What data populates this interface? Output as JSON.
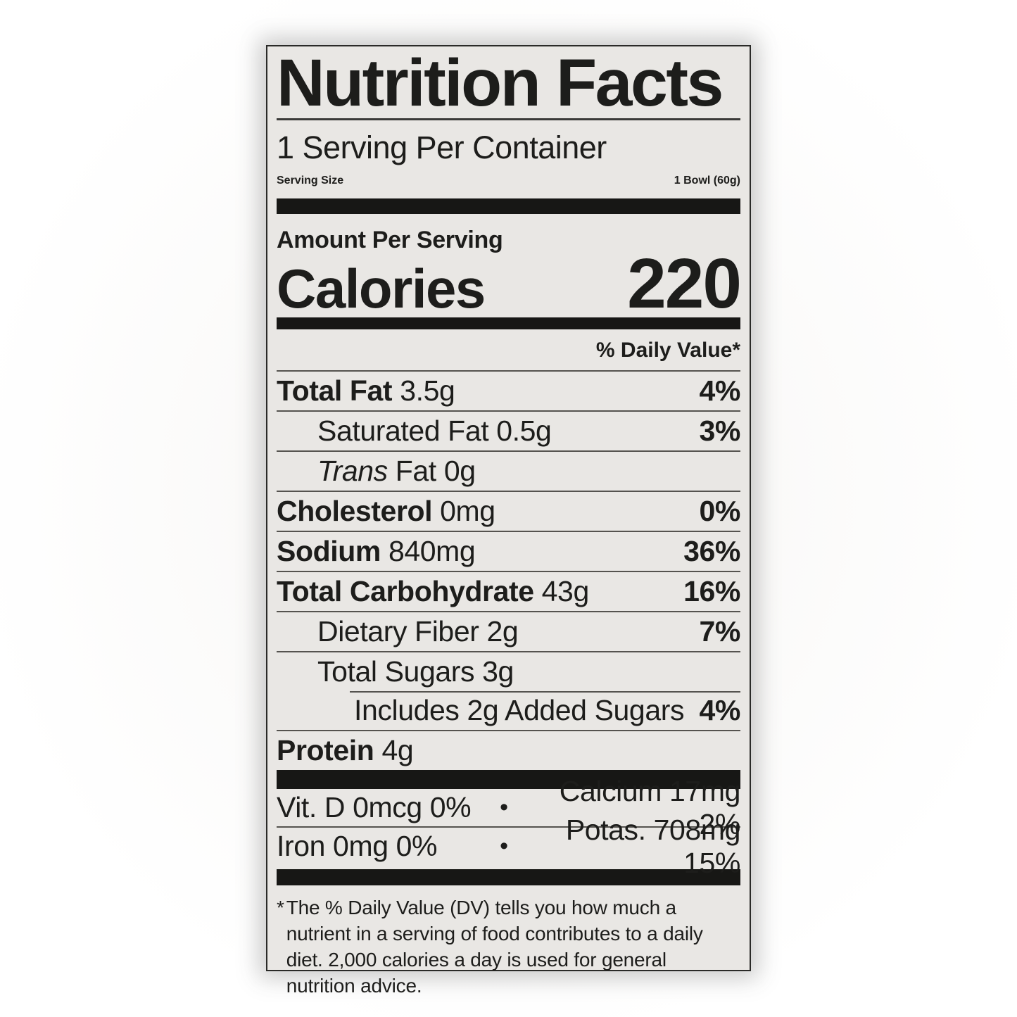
{
  "label": {
    "title": "Nutrition Facts",
    "servings_per_container": "1 Serving Per Container",
    "serving_size": {
      "label": "Serving Size",
      "value": "1 Bowl (60g)"
    },
    "amount_per_serving": "Amount Per Serving",
    "calories": {
      "label": "Calories",
      "value": "220"
    },
    "daily_value_header": "% Daily Value*",
    "nutrients": [
      {
        "name": "Total Fat",
        "amount": "3.5g",
        "dv": "4%"
      },
      {
        "name": "Saturated Fat",
        "amount": "0.5g",
        "dv": "3%"
      },
      {
        "name_italic": "Trans",
        "name_rest": "Fat",
        "amount": "0g",
        "dv": ""
      },
      {
        "name": "Cholesterol",
        "amount": "0mg",
        "dv": "0%"
      },
      {
        "name": "Sodium",
        "amount": "840mg",
        "dv": "36%"
      },
      {
        "name": "Total Carbohydrate",
        "amount": "43g",
        "dv": "16%"
      },
      {
        "name": "Dietary Fiber",
        "amount": "2g",
        "dv": "7%"
      },
      {
        "name": "Total Sugars",
        "amount": "3g",
        "dv": ""
      },
      {
        "name": "Includes 2g Added Sugars",
        "amount": "",
        "dv": "4%"
      },
      {
        "name": "Protein",
        "amount": "4g",
        "dv": ""
      }
    ],
    "micronutrients": [
      {
        "left": "Vit. D 0mcg 0%",
        "separator": "•",
        "right": "Calcium 17mg 2%"
      },
      {
        "left": "Iron 0mg 0%",
        "separator": "•",
        "right": "Potas. 708mg 15%"
      }
    ],
    "footnote_marker": "*",
    "footnote": "The % Daily Value (DV) tells you how much a nutrient in a serving of food contributes to a daily diet. 2,000 calories a day is used for general nutrition advice."
  },
  "colors": {
    "label_background": "#e9e7e4",
    "text": "#1d1d1b",
    "bar": "#171715",
    "hairline": "#55534f"
  }
}
